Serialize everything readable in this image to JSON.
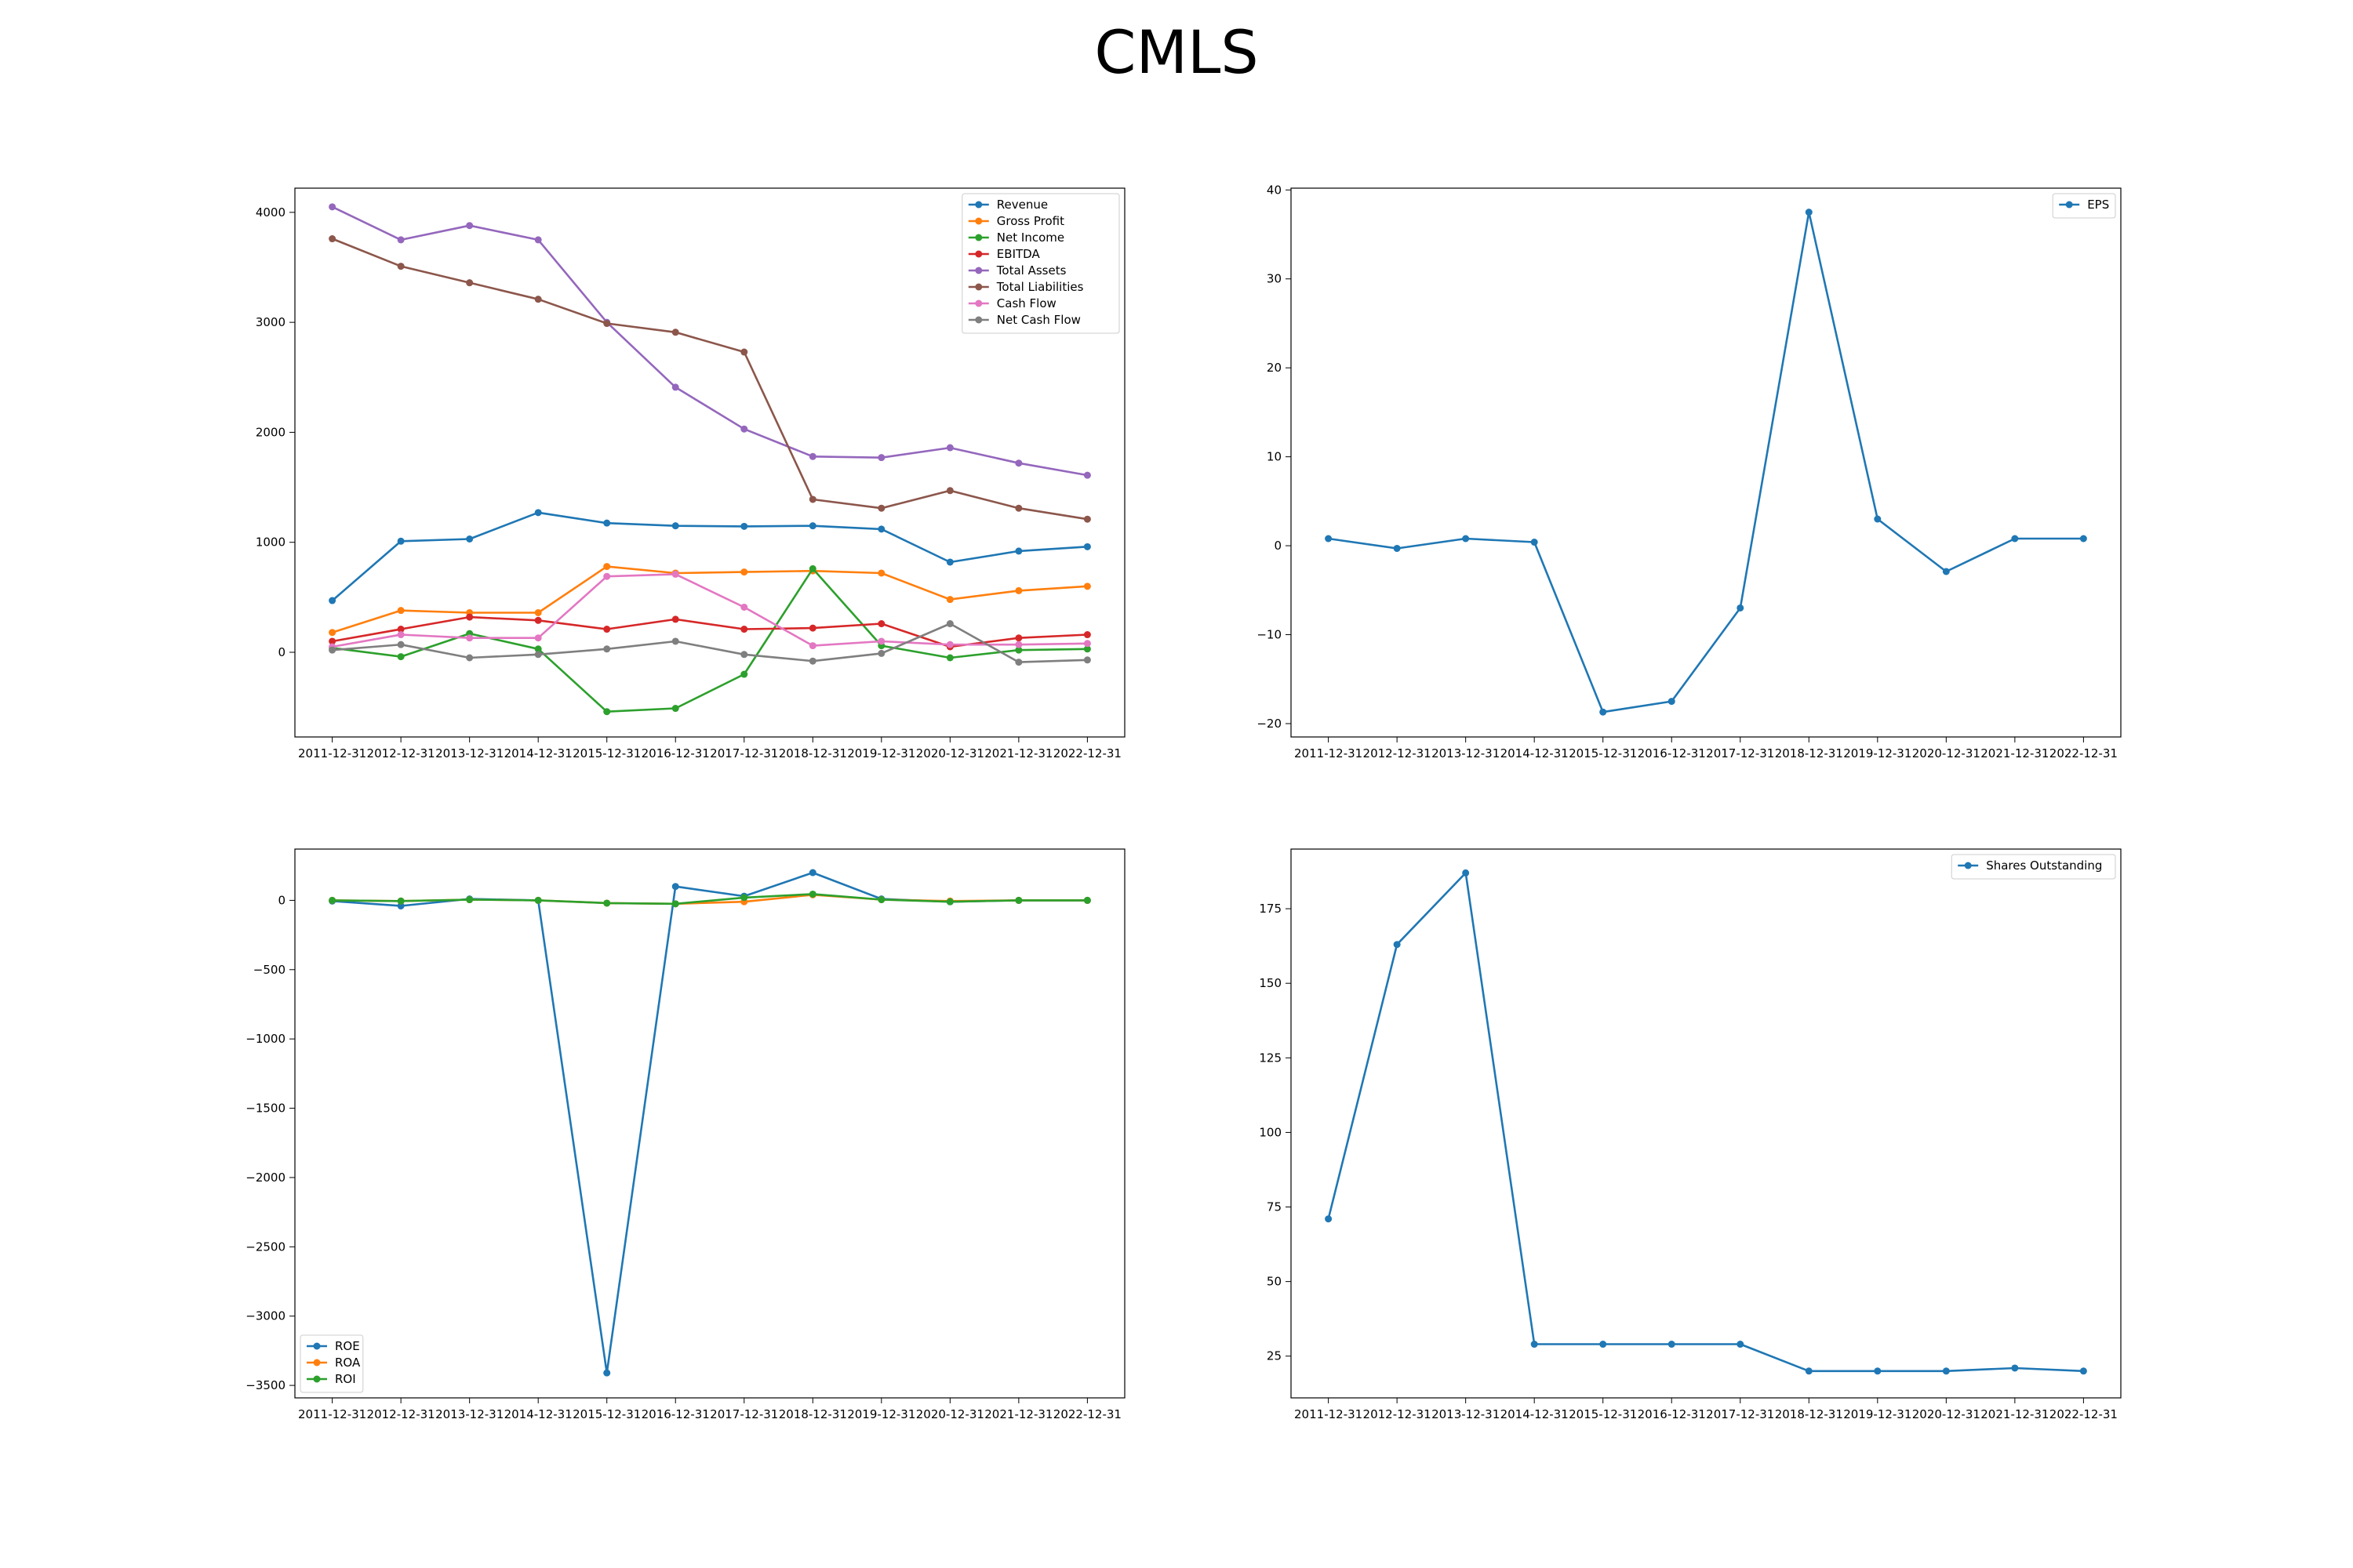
{
  "title": "CMLS",
  "chart_data": [
    {
      "type": "line",
      "legend_loc": "upper right",
      "x": [
        "2011-12-31",
        "2012-12-31",
        "2013-12-31",
        "2014-12-31",
        "2015-12-31",
        "2016-12-31",
        "2017-12-31",
        "2018-12-31",
        "2019-12-31",
        "2020-12-31",
        "2021-12-31",
        "2022-12-31"
      ],
      "ylim": [
        -770,
        4220
      ],
      "yticks": [
        0,
        1000,
        2000,
        3000,
        4000
      ],
      "ytick_labels": [
        "0",
        "1000",
        "2000",
        "3000",
        "4000"
      ],
      "series": [
        {
          "name": "Revenue",
          "color": "#1f77b4",
          "values": [
            470,
            1010,
            1030,
            1270,
            1175,
            1150,
            1145,
            1150,
            1120,
            820,
            920,
            960
          ]
        },
        {
          "name": "Gross Profit",
          "color": "#ff7f0e",
          "values": [
            180,
            380,
            360,
            360,
            780,
            720,
            730,
            740,
            720,
            480,
            560,
            600
          ]
        },
        {
          "name": "Net Income",
          "color": "#2ca02c",
          "values": [
            40,
            -40,
            170,
            30,
            -540,
            -510,
            -200,
            760,
            60,
            -50,
            20,
            30
          ]
        },
        {
          "name": "EBITDA",
          "color": "#d62728",
          "values": [
            100,
            210,
            320,
            290,
            210,
            300,
            210,
            220,
            260,
            50,
            130,
            160
          ]
        },
        {
          "name": "Total Assets",
          "color": "#9467bd",
          "values": [
            4050,
            3750,
            3880,
            3750,
            3000,
            2410,
            2030,
            1780,
            1770,
            1860,
            1720,
            1610
          ]
        },
        {
          "name": "Total Liabilities",
          "color": "#8c564b",
          "values": [
            3760,
            3510,
            3360,
            3210,
            2990,
            2910,
            2730,
            1390,
            1310,
            1470,
            1310,
            1210
          ]
        },
        {
          "name": "Cash Flow",
          "color": "#e377c2",
          "values": [
            50,
            160,
            130,
            130,
            690,
            710,
            410,
            60,
            100,
            70,
            70,
            80
          ]
        },
        {
          "name": "Net Cash Flow",
          "color": "#7f7f7f",
          "values": [
            20,
            70,
            -50,
            -20,
            30,
            100,
            -20,
            -80,
            -10,
            260,
            -90,
            -70
          ]
        }
      ]
    },
    {
      "type": "line",
      "legend_loc": "upper right",
      "x": [
        "2011-12-31",
        "2012-12-31",
        "2013-12-31",
        "2014-12-31",
        "2015-12-31",
        "2016-12-31",
        "2017-12-31",
        "2018-12-31",
        "2019-12-31",
        "2020-12-31",
        "2021-12-31",
        "2022-12-31"
      ],
      "ylim": [
        -21.5,
        40.2
      ],
      "yticks": [
        -20,
        -10,
        0,
        10,
        20,
        30,
        40
      ],
      "ytick_labels": [
        "−20",
        "−10",
        "0",
        "10",
        "20",
        "30",
        "40"
      ],
      "series": [
        {
          "name": "EPS",
          "color": "#1f77b4",
          "values": [
            0.8,
            -0.3,
            0.8,
            0.4,
            -18.7,
            -17.5,
            -7.0,
            37.5,
            3.0,
            -2.9,
            0.8,
            0.8
          ]
        }
      ]
    },
    {
      "type": "line",
      "legend_loc": "lower left",
      "x": [
        "2011-12-31",
        "2012-12-31",
        "2013-12-31",
        "2014-12-31",
        "2015-12-31",
        "2016-12-31",
        "2017-12-31",
        "2018-12-31",
        "2019-12-31",
        "2020-12-31",
        "2021-12-31",
        "2022-12-31"
      ],
      "ylim": [
        -3590,
        370
      ],
      "yticks": [
        -3500,
        -3000,
        -2500,
        -2000,
        -1500,
        -1000,
        -500,
        0
      ],
      "ytick_labels": [
        "−3500",
        "−3000",
        "−2500",
        "−2000",
        "−1500",
        "−1000",
        "−500",
        "0"
      ],
      "series": [
        {
          "name": "ROE",
          "color": "#1f77b4",
          "values": [
            -5,
            -40,
            10,
            0,
            -3410,
            100,
            30,
            200,
            10,
            -10,
            0,
            0
          ]
        },
        {
          "name": "ROA",
          "color": "#ff7f0e",
          "values": [
            0,
            -5,
            5,
            0,
            -20,
            -25,
            -10,
            40,
            5,
            -5,
            0,
            0
          ]
        },
        {
          "name": "ROI",
          "color": "#2ca02c",
          "values": [
            0,
            -5,
            5,
            0,
            -20,
            -25,
            20,
            45,
            5,
            -10,
            0,
            0
          ]
        }
      ]
    },
    {
      "type": "line",
      "legend_loc": "upper right",
      "x": [
        "2011-12-31",
        "2012-12-31",
        "2013-12-31",
        "2014-12-31",
        "2015-12-31",
        "2016-12-31",
        "2017-12-31",
        "2018-12-31",
        "2019-12-31",
        "2020-12-31",
        "2021-12-31",
        "2022-12-31"
      ],
      "ylim": [
        11,
        195
      ],
      "yticks": [
        25,
        50,
        75,
        100,
        125,
        150,
        175
      ],
      "ytick_labels": [
        "25",
        "50",
        "75",
        "100",
        "125",
        "150",
        "175"
      ],
      "series": [
        {
          "name": "Shares Outstanding",
          "color": "#1f77b4",
          "values": [
            71,
            163,
            187,
            29,
            29,
            29,
            29,
            20,
            20,
            20,
            21,
            20
          ]
        }
      ]
    }
  ]
}
